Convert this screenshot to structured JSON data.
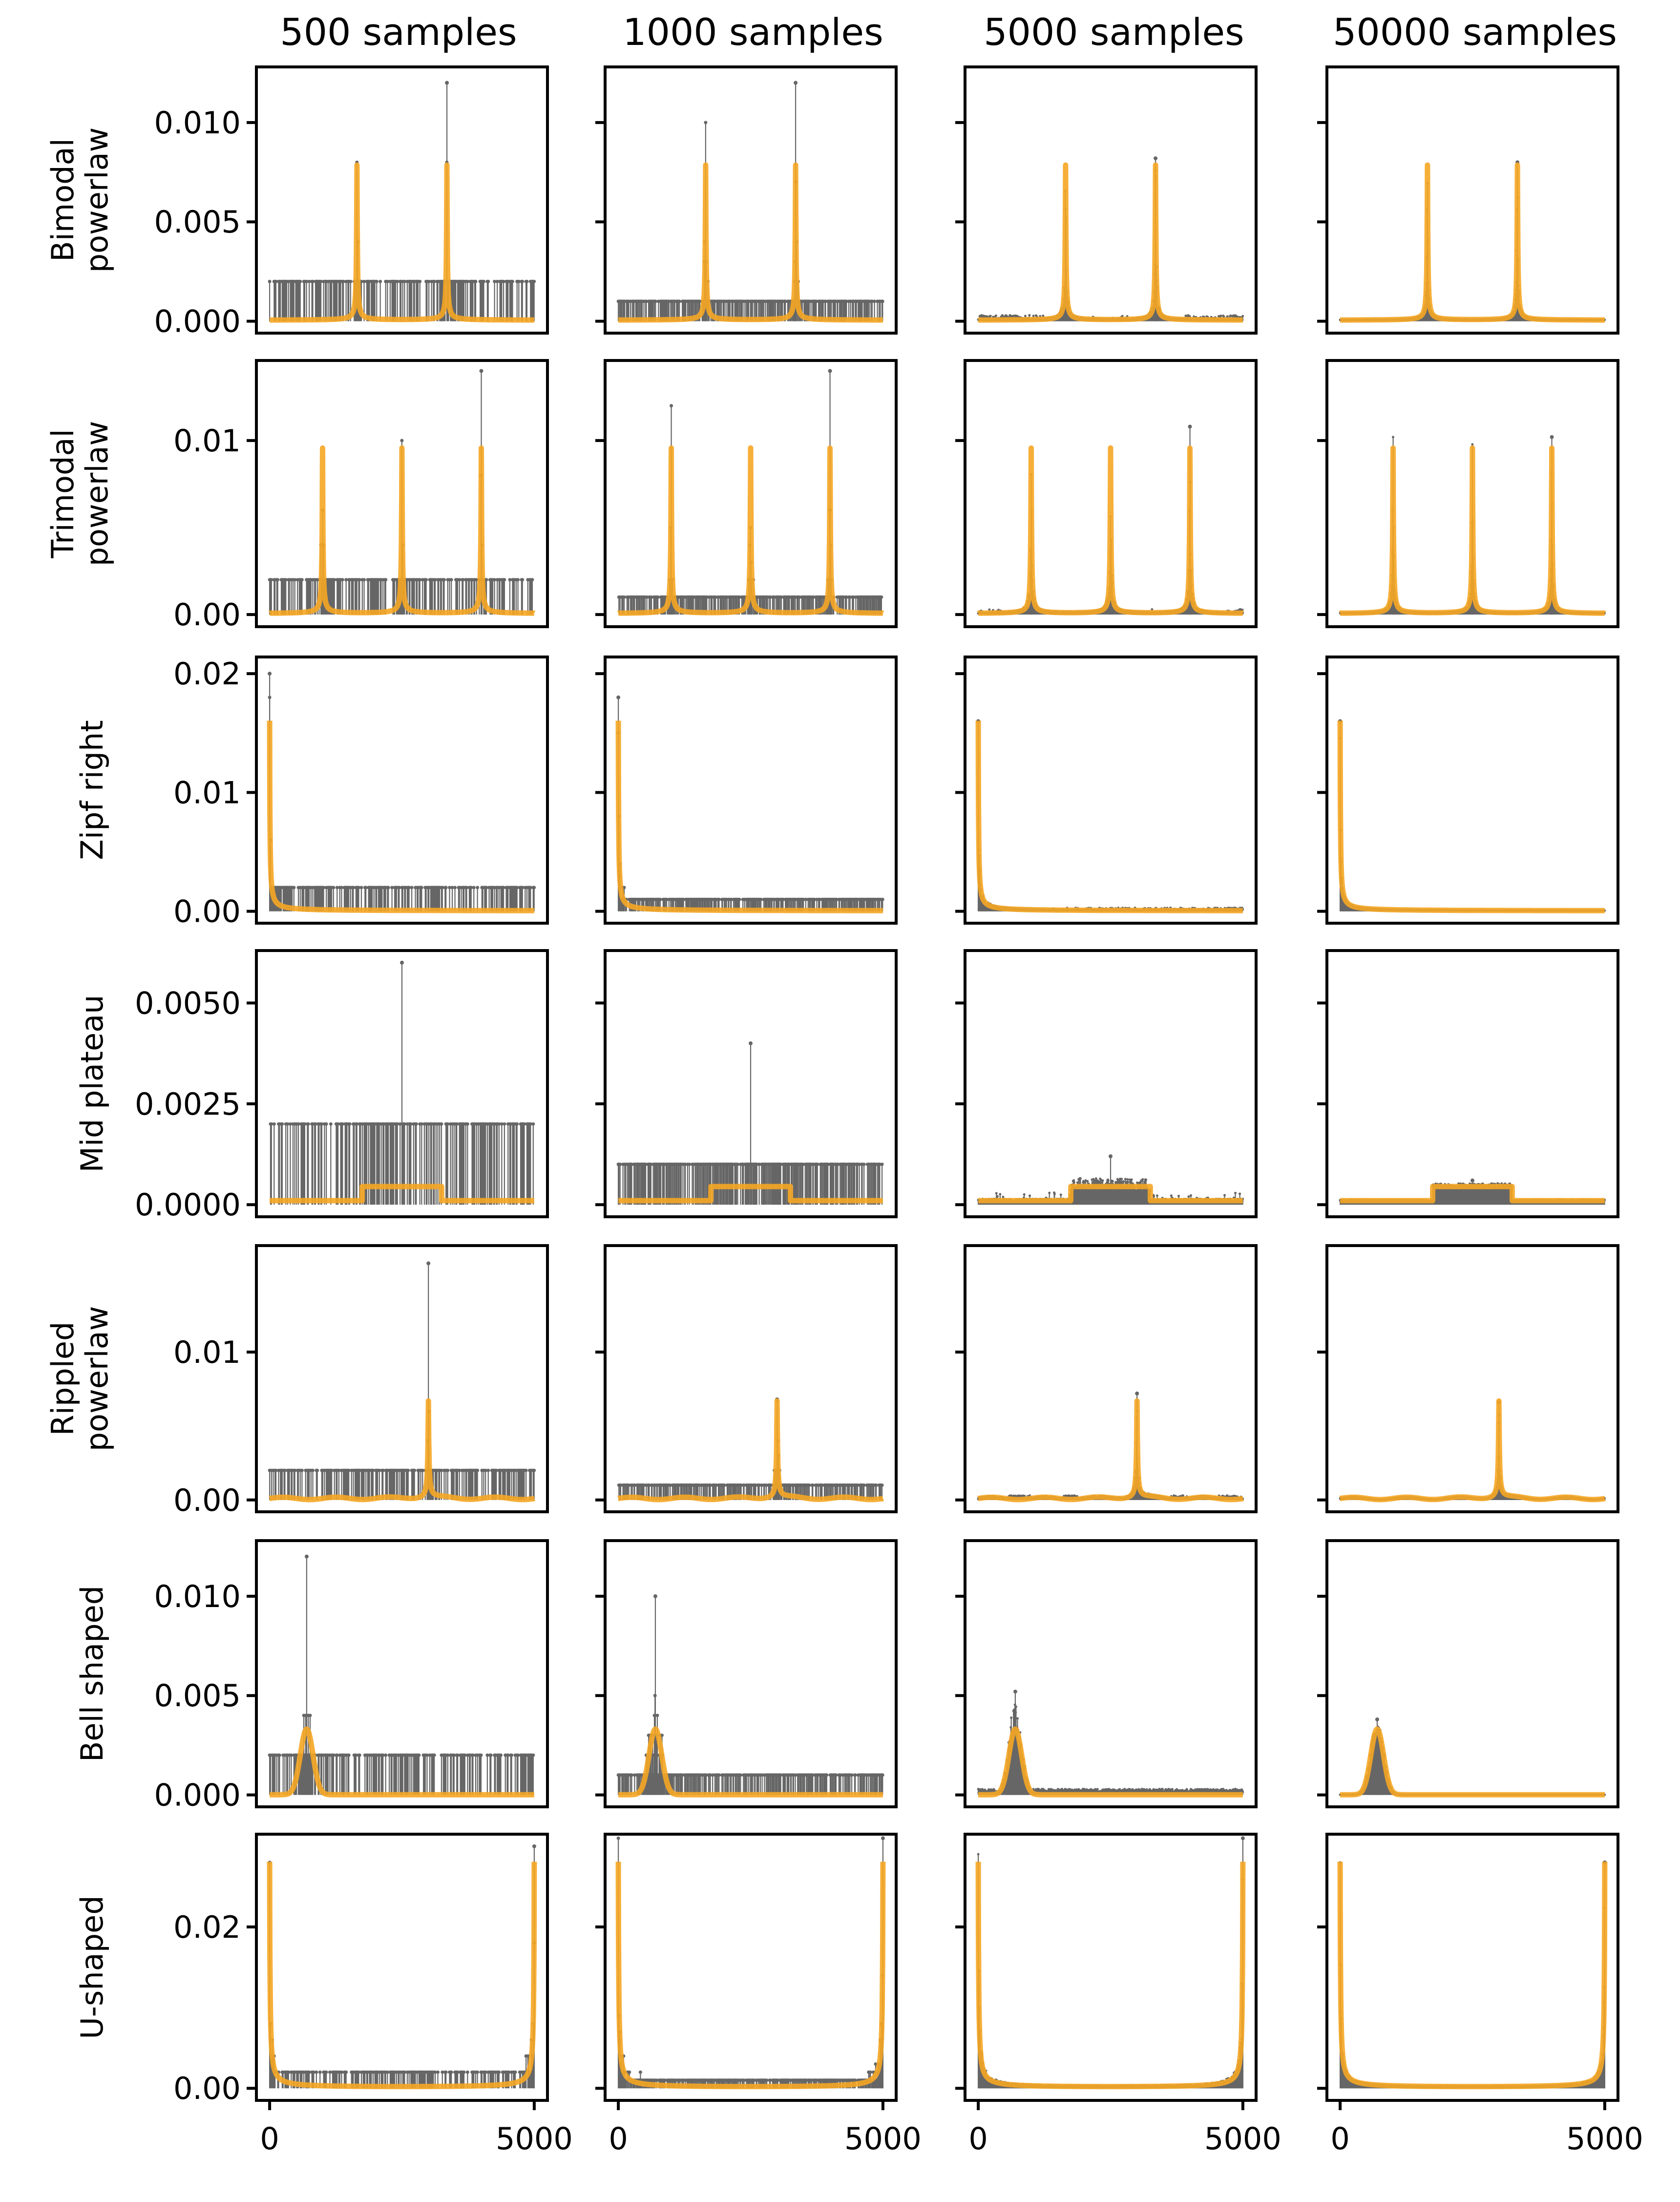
{
  "chart_data": {
    "type": "grid-stem-line",
    "title": "",
    "column_titles": [
      "500 samples",
      "1000 samples",
      "5000 samples",
      "50000 samples"
    ],
    "sample_sizes": [
      500,
      1000,
      5000,
      50000
    ],
    "xlabel": "",
    "xlim": [
      -250,
      5250
    ],
    "x_ticks": [
      0,
      5000
    ],
    "x_tick_labels": [
      "0",
      "5000"
    ],
    "domain_size": 5000,
    "series_legend": [
      {
        "name": "empirical frequency (stem)",
        "color": "#666666"
      },
      {
        "name": "true distribution",
        "color": "#f5a623"
      }
    ],
    "rows": [
      {
        "label": "Bimodal\npowerlaw",
        "label_lines": [
          "Bimodal",
          "powerlaw"
        ],
        "shape": "bimodal",
        "peaks_x": [
          1650,
          3350
        ],
        "true_peak_value": 0.0078,
        "ylim": [
          -0.0006,
          0.0128
        ],
        "y_ticks": [
          0.0,
          0.005,
          0.01
        ],
        "y_tick_labels": [
          "0.000",
          "0.005",
          "0.010"
        ],
        "empirical_max": [
          0.012,
          0.012,
          0.0082,
          0.008
        ],
        "empirical_floor": [
          0.002,
          0.001,
          0.0002,
          2e-05
        ]
      },
      {
        "label": "Trimodal\npowerlaw",
        "label_lines": [
          "Trimodal",
          "powerlaw"
        ],
        "shape": "trimodal",
        "peaks_x": [
          1000,
          2500,
          4000
        ],
        "true_peak_value": 0.0095,
        "ylim": [
          -0.0007,
          0.0146
        ],
        "y_ticks": [
          0.0,
          0.01
        ],
        "y_tick_labels": [
          "0.00",
          "0.01"
        ],
        "empirical_max": [
          0.014,
          0.014,
          0.0108,
          0.0102
        ],
        "empirical_floor": [
          0.002,
          0.001,
          0.0002,
          2e-05
        ]
      },
      {
        "label": "Zipf right",
        "label_lines": [
          "Zipf right"
        ],
        "shape": "zipf",
        "peaks_x": [
          0
        ],
        "true_peak_value": 0.016,
        "ylim": [
          -0.001,
          0.0214
        ],
        "y_ticks": [
          0.0,
          0.01,
          0.02
        ],
        "y_tick_labels": [
          "0.00",
          "0.01",
          "0.02"
        ],
        "empirical_max": [
          0.02,
          0.018,
          0.016,
          0.016
        ],
        "empirical_floor": [
          0.002,
          0.001,
          0.0002,
          2e-05
        ]
      },
      {
        "label": "Mid plateau",
        "label_lines": [
          "Mid plateau"
        ],
        "shape": "plateau",
        "plateau_range": [
          1750,
          3250
        ],
        "true_low_value": 0.0001,
        "true_high_value": 0.00045,
        "ylim": [
          -0.0003,
          0.0063
        ],
        "y_ticks": [
          0.0,
          0.0025,
          0.005
        ],
        "y_tick_labels": [
          "0.0000",
          "0.0025",
          "0.0050"
        ],
        "empirical_max": [
          0.006,
          0.004,
          0.0012,
          0.0006
        ],
        "empirical_floor": [
          0.002,
          0.001,
          0.0002,
          2e-05
        ]
      },
      {
        "label": "Rippled\npowerlaw",
        "label_lines": [
          "Rippled",
          "powerlaw"
        ],
        "shape": "rippled",
        "peaks_x": [
          3000
        ],
        "true_peak_value": 0.0066,
        "ylim": [
          -0.0008,
          0.0172
        ],
        "y_ticks": [
          0.0,
          0.01
        ],
        "y_tick_labels": [
          "0.00",
          "0.01"
        ],
        "empirical_max": [
          0.016,
          0.0068,
          0.0072,
          0.0066
        ],
        "empirical_floor": [
          0.002,
          0.001,
          0.0002,
          2e-05
        ]
      },
      {
        "label": "Bell shaped",
        "label_lines": [
          "Bell shaped"
        ],
        "shape": "bell",
        "peaks_x": [
          700
        ],
        "bell_sigma": 120,
        "true_peak_value": 0.0033,
        "ylim": [
          -0.0006,
          0.0128
        ],
        "y_ticks": [
          0.0,
          0.005,
          0.01
        ],
        "y_tick_labels": [
          "0.000",
          "0.005",
          "0.010"
        ],
        "empirical_max": [
          0.012,
          0.01,
          0.0052,
          0.0038
        ],
        "empirical_floor": [
          0.002,
          0.001,
          0.0002,
          2e-05
        ]
      },
      {
        "label": "U-shaped",
        "label_lines": [
          "U-shaped"
        ],
        "shape": "ushape",
        "peaks_x": [
          0,
          5000
        ],
        "true_peak_value": 0.028,
        "ylim": [
          -0.0015,
          0.0315
        ],
        "y_ticks": [
          0.0,
          0.02
        ],
        "y_tick_labels": [
          "0.00",
          "0.02"
        ],
        "empirical_max": [
          0.03,
          0.031,
          0.031,
          0.028
        ],
        "empirical_floor": [
          0.002,
          0.001,
          0.0002,
          2e-05
        ]
      }
    ]
  }
}
